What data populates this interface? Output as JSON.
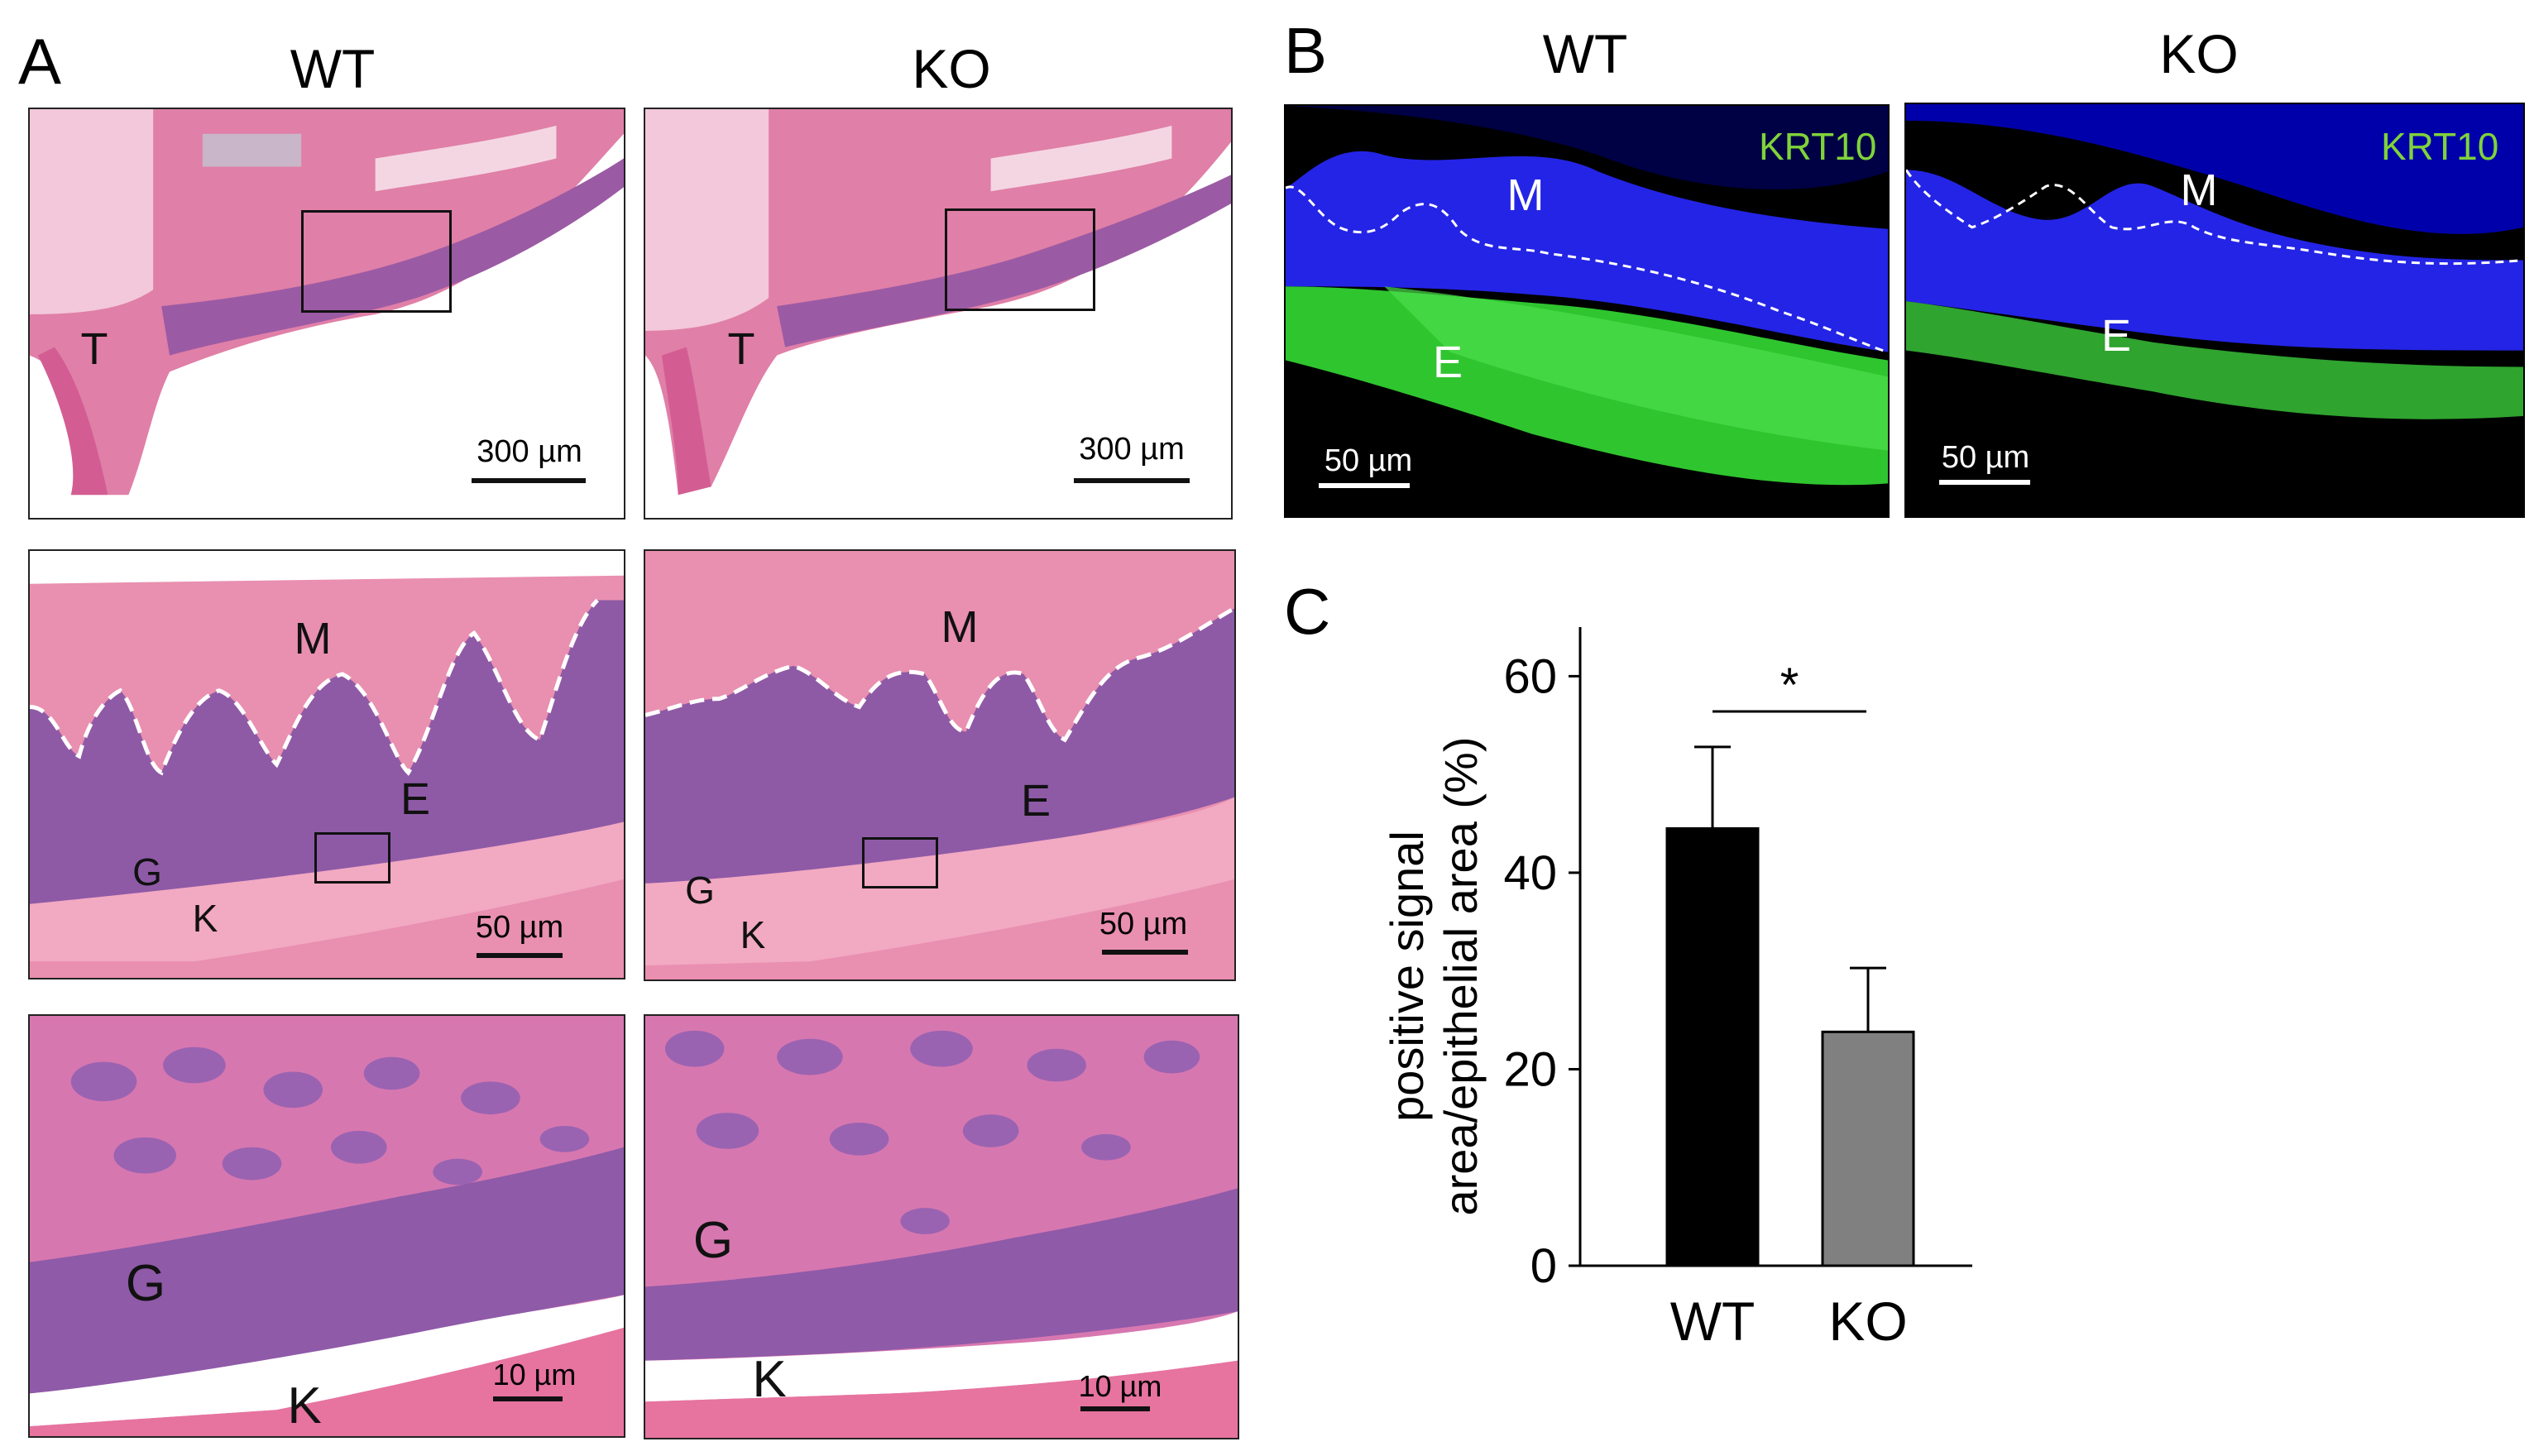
{
  "panel_a": {
    "letter": "A",
    "col_wt": "WT",
    "col_ko": "KO",
    "row1": {
      "wt": {
        "labels": {
          "tooth": "T"
        },
        "scale": "300 µm"
      },
      "ko": {
        "labels": {
          "tooth": "T"
        },
        "scale": "300 µm"
      }
    },
    "row2": {
      "wt": {
        "labels": {
          "m": "M",
          "e": "E",
          "g": "G",
          "k": "K"
        },
        "scale": "50 µm"
      },
      "ko": {
        "labels": {
          "m": "M",
          "e": "E",
          "g": "G",
          "k": "K"
        },
        "scale": "50 µm"
      }
    },
    "row3": {
      "wt": {
        "labels": {
          "g": "G",
          "k": "K"
        },
        "scale": "10 µm"
      },
      "ko": {
        "labels": {
          "g": "G",
          "k": "K"
        },
        "scale": "10 µm"
      }
    },
    "colors": {
      "he_pink": "#e8789f",
      "he_purple": "#9a5fa8",
      "background": "#ffffff"
    }
  },
  "panel_b": {
    "letter": "B",
    "col_wt": "WT",
    "col_ko": "KO",
    "stain": "KRT10",
    "wt": {
      "labels": {
        "m": "M",
        "e": "E"
      },
      "scale": "50 µm"
    },
    "ko": {
      "labels": {
        "m": "M",
        "e": "E"
      },
      "scale": "50 µm"
    },
    "colors": {
      "nuclei": "#1a1aff",
      "krt10": "#3ad63a",
      "stain_label": "#7fd33a"
    }
  },
  "panel_c": {
    "letter": "C",
    "significance": "*",
    "chart_data": {
      "type": "bar",
      "categories": [
        "WT",
        "KO"
      ],
      "values": [
        44.5,
        23.8
      ],
      "errors": [
        8.3,
        6.5
      ],
      "bar_colors": [
        "#000000",
        "#808080"
      ],
      "ylabel_line1": "positive signal",
      "ylabel_line2": "area/epithelial area (%)",
      "yticks": [
        "0",
        "20",
        "40",
        "60"
      ],
      "ytick_values": [
        0,
        20,
        40,
        60
      ],
      "ylim": [
        0,
        65
      ]
    }
  }
}
